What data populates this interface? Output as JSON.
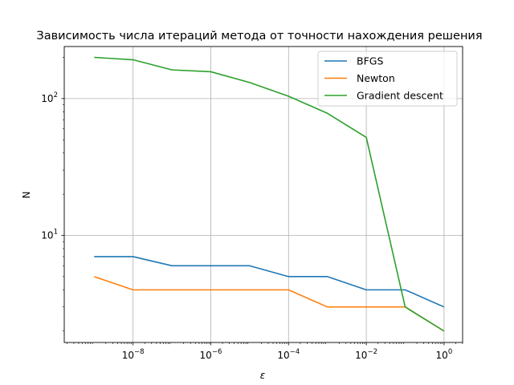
{
  "chart_data": {
    "type": "line",
    "title": "Зависимость числа итераций метода от точности нахождения решения",
    "xlabel": "ε",
    "ylabel": "N",
    "xscale": "log",
    "yscale": "log",
    "xlim": [
      1.7e-10,
      3.0
    ],
    "ylim": [
      1.65,
      240
    ],
    "grid": true,
    "legend_position": "upper-right",
    "x_ticks": [
      {
        "value": 1e-08,
        "base": "10",
        "exp": "−8"
      },
      {
        "value": 1e-06,
        "base": "10",
        "exp": "−6"
      },
      {
        "value": 0.0001,
        "base": "10",
        "exp": "−4"
      },
      {
        "value": 0.01,
        "base": "10",
        "exp": "−2"
      },
      {
        "value": 1,
        "base": "10",
        "exp": "0"
      }
    ],
    "y_ticks": [
      {
        "value": 10,
        "base": "10",
        "exp": "1"
      },
      {
        "value": 100,
        "base": "10",
        "exp": "2"
      }
    ],
    "x": [
      1e-09,
      1e-08,
      1e-07,
      1e-06,
      1e-05,
      0.0001,
      0.001,
      0.01,
      0.1,
      1
    ],
    "series": [
      {
        "name": "BFGS",
        "color": "#1f77b4",
        "values": [
          7,
          7,
          6,
          6,
          6,
          5,
          5,
          4,
          4,
          3
        ]
      },
      {
        "name": "Newton",
        "color": "#ff7f0e",
        "values": [
          5,
          4,
          4,
          4,
          4,
          4,
          3,
          3,
          3,
          2
        ]
      },
      {
        "name": "Gradient descent",
        "color": "#2ca02c",
        "values": [
          200,
          192,
          162,
          157,
          131,
          104,
          78,
          52,
          3,
          2
        ]
      }
    ]
  }
}
